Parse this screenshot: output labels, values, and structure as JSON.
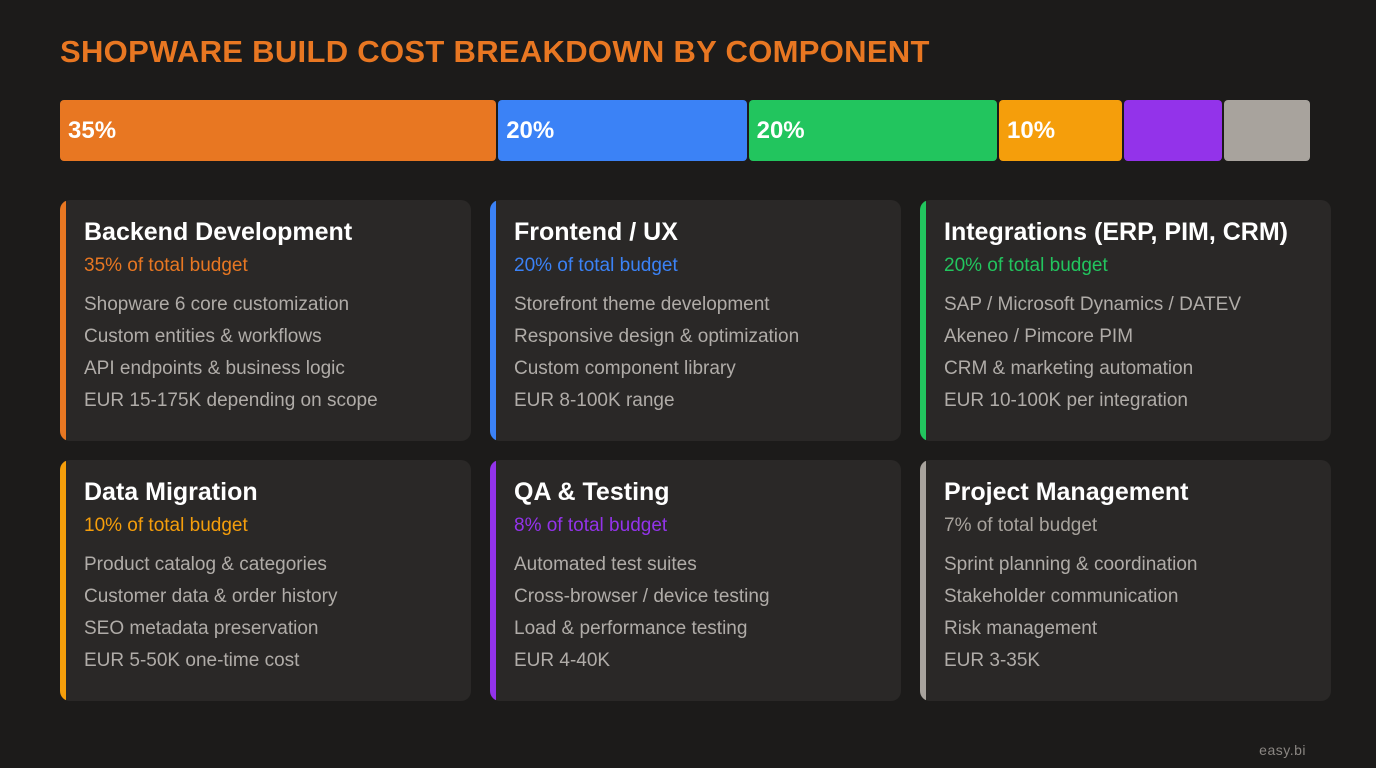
{
  "title": "SHOPWARE BUILD COST BREAKDOWN BY COMPONENT",
  "chart_data": {
    "type": "bar",
    "orientation": "horizontal-stacked",
    "categories": [
      "Backend Development",
      "Frontend / UX",
      "Integrations (ERP, PIM, CRM)",
      "Data Migration",
      "QA & Testing",
      "Project Management"
    ],
    "values": [
      35,
      20,
      20,
      10,
      8,
      7
    ],
    "labels": [
      "35%",
      "20%",
      "20%",
      "10%",
      "",
      ""
    ],
    "colors": [
      "#e87722",
      "#3b82f6",
      "#22c55e",
      "#f59e0b",
      "#9333ea",
      "#a8a39d"
    ]
  },
  "cards": [
    {
      "title": "Backend Development",
      "share": "35% of total budget",
      "color": "#e87722",
      "items": [
        "Shopware 6 core customization",
        "Custom entities & workflows",
        "API endpoints & business logic",
        "EUR 15-175K depending on scope"
      ]
    },
    {
      "title": "Frontend / UX",
      "share": "20% of total budget",
      "color": "#3b82f6",
      "items": [
        "Storefront theme development",
        "Responsive design & optimization",
        "Custom component library",
        "EUR 8-100K range"
      ]
    },
    {
      "title": "Integrations (ERP, PIM, CRM)",
      "share": "20% of total budget",
      "color": "#22c55e",
      "items": [
        "SAP / Microsoft Dynamics / DATEV",
        "Akeneo / Pimcore PIM",
        "CRM & marketing automation",
        "EUR 10-100K per integration"
      ]
    },
    {
      "title": "Data Migration",
      "share": "10% of total budget",
      "color": "#f59e0b",
      "items": [
        "Product catalog & categories",
        "Customer data & order history",
        "SEO metadata preservation",
        "EUR 5-50K one-time cost"
      ]
    },
    {
      "title": "QA & Testing",
      "share": "8% of total budget",
      "color": "#9333ea",
      "items": [
        "Automated test suites",
        "Cross-browser / device testing",
        "Load & performance testing",
        "EUR 4-40K"
      ]
    },
    {
      "title": "Project Management",
      "share": "7% of total budget",
      "color": "#a8a39d",
      "items": [
        "Sprint planning & coordination",
        "Stakeholder communication",
        "Risk management",
        "EUR 3-35K"
      ]
    }
  ],
  "footer": "easy.bi"
}
